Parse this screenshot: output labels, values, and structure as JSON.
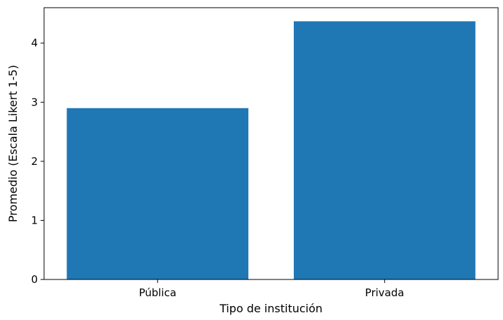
{
  "chart_data": {
    "type": "bar",
    "title": "",
    "xlabel": "Tipo de institución",
    "ylabel": "Promedio (Escala Likert 1-5)",
    "categories": [
      "Pública",
      "Privada"
    ],
    "values": [
      2.9,
      4.37
    ],
    "ylim": [
      0,
      4.6
    ],
    "yticks": [
      0,
      1,
      2,
      3,
      4
    ],
    "bar_color": "#1f77b4",
    "grid": false,
    "legend": "none"
  }
}
